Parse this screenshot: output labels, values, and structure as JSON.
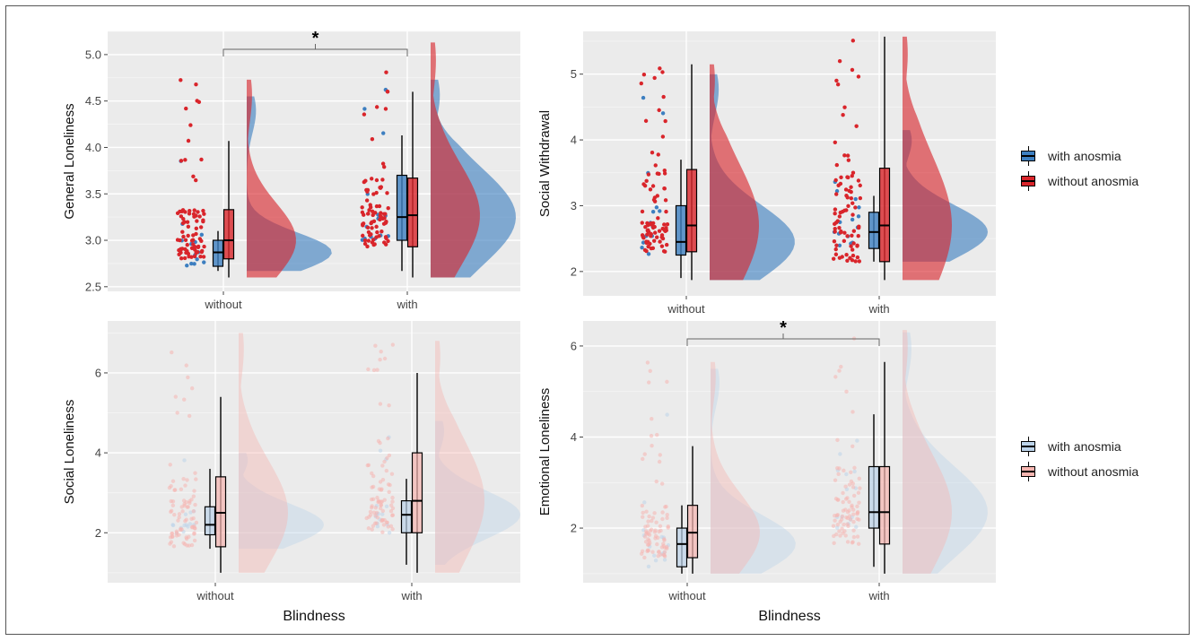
{
  "figure": {
    "significance_marker": "*",
    "x_axis_title": "Blindness"
  },
  "legends": [
    {
      "items": [
        {
          "label": "with anosmia",
          "color": "#3d7fc0"
        },
        {
          "label": "without anosmia",
          "color": "#d9252b"
        }
      ]
    },
    {
      "items": [
        {
          "label": "with anosmia",
          "color": "#bcd3ea"
        },
        {
          "label": "without anosmia",
          "color": "#f6b5b0"
        }
      ]
    }
  ],
  "chart_data": [
    {
      "type": "raincloud",
      "ylabel": "General Loneliness",
      "xlabel": "",
      "categories": [
        "without",
        "with"
      ],
      "ylim": [
        2.45,
        5.25
      ],
      "yticks": [
        "2.5",
        "3.0",
        "3.5",
        "4.0",
        "4.5",
        "5.0"
      ],
      "faded": false,
      "significance": {
        "between": [
          "without",
          "with"
        ],
        "label": "*"
      },
      "series": [
        {
          "name": "with anosmia",
          "color": "#3d7fc0",
          "box": {
            "without": {
              "min": 2.67,
              "q1": 2.72,
              "median": 2.87,
              "q3": 3.0,
              "max": 3.1
            },
            "with": {
              "min": 2.67,
              "q1": 3.0,
              "median": 3.25,
              "q3": 3.7,
              "max": 4.13
            }
          },
          "density_range": {
            "without": [
              2.67,
              4.55
            ],
            "with": [
              2.6,
              4.73
            ]
          }
        },
        {
          "name": "without anosmia",
          "color": "#d9252b",
          "box": {
            "without": {
              "min": 2.6,
              "q1": 2.8,
              "median": 3.0,
              "q3": 3.33,
              "max": 4.07
            },
            "with": {
              "min": 2.6,
              "q1": 2.93,
              "median": 3.27,
              "q3": 3.67,
              "max": 4.6
            }
          },
          "density_range": {
            "without": [
              2.6,
              4.73
            ],
            "with": [
              2.6,
              5.13
            ]
          }
        }
      ]
    },
    {
      "type": "raincloud",
      "ylabel": "Social Withdrawal",
      "xlabel": "",
      "categories": [
        "without",
        "with"
      ],
      "ylim": [
        1.63,
        5.65
      ],
      "yticks": [
        "2",
        "3",
        "4",
        "5"
      ],
      "faded": false,
      "significance": null,
      "series": [
        {
          "name": "with anosmia",
          "color": "#3d7fc0",
          "box": {
            "without": {
              "min": 1.9,
              "q1": 2.25,
              "median": 2.45,
              "q3": 3.0,
              "max": 3.7
            },
            "with": {
              "min": 2.15,
              "q1": 2.35,
              "median": 2.6,
              "q3": 2.9,
              "max": 3.15
            }
          },
          "density_range": {
            "without": [
              1.87,
              5.0
            ],
            "with": [
              2.15,
              4.15
            ]
          }
        },
        {
          "name": "without anosmia",
          "color": "#d9252b",
          "box": {
            "without": {
              "min": 1.87,
              "q1": 2.3,
              "median": 2.7,
              "q3": 3.55,
              "max": 5.15
            },
            "with": {
              "min": 1.87,
              "q1": 2.15,
              "median": 2.7,
              "q3": 3.57,
              "max": 5.57
            }
          },
          "density_range": {
            "without": [
              1.87,
              5.15
            ],
            "with": [
              1.87,
              5.57
            ]
          }
        }
      ]
    },
    {
      "type": "raincloud",
      "ylabel": "Social Loneliness",
      "xlabel": "Blindness",
      "categories": [
        "without",
        "with"
      ],
      "ylim": [
        0.75,
        7.3
      ],
      "yticks": [
        "2",
        "4",
        "6"
      ],
      "faded": true,
      "significance": null,
      "series": [
        {
          "name": "with anosmia",
          "color": "#bcd3ea",
          "box": {
            "without": {
              "min": 1.6,
              "q1": 1.95,
              "median": 2.2,
              "q3": 2.65,
              "max": 3.6
            },
            "with": {
              "min": 1.2,
              "q1": 2.0,
              "median": 2.45,
              "q3": 2.8,
              "max": 3.35
            }
          },
          "density_range": {
            "without": [
              1.6,
              4.0
            ],
            "with": [
              1.2,
              4.8
            ]
          }
        },
        {
          "name": "without anosmia",
          "color": "#f6b5b0",
          "box": {
            "without": {
              "min": 1.0,
              "q1": 1.65,
              "median": 2.5,
              "q3": 3.4,
              "max": 5.4
            },
            "with": {
              "min": 1.0,
              "q1": 2.0,
              "median": 2.8,
              "q3": 4.0,
              "max": 6.0
            }
          },
          "density_range": {
            "without": [
              1.0,
              7.0
            ],
            "with": [
              1.0,
              6.8
            ]
          }
        }
      ]
    },
    {
      "type": "raincloud",
      "ylabel": "Emotional Loneliness",
      "xlabel": "Blindness",
      "categories": [
        "without",
        "with"
      ],
      "ylim": [
        0.8,
        6.55
      ],
      "yticks": [
        "2",
        "4",
        "6"
      ],
      "faded": true,
      "significance": {
        "between": [
          "without",
          "with"
        ],
        "label": "*"
      },
      "series": [
        {
          "name": "with anosmia",
          "color": "#bcd3ea",
          "box": {
            "without": {
              "min": 1.0,
              "q1": 1.15,
              "median": 1.65,
              "q3": 2.0,
              "max": 2.5
            },
            "with": {
              "min": 1.15,
              "q1": 2.0,
              "median": 2.35,
              "q3": 3.35,
              "max": 4.5
            }
          },
          "density_range": {
            "without": [
              1.0,
              5.5
            ],
            "with": [
              1.0,
              6.3
            ]
          }
        },
        {
          "name": "without anosmia",
          "color": "#f6b5b0",
          "box": {
            "without": {
              "min": 1.0,
              "q1": 1.35,
              "median": 1.9,
              "q3": 2.5,
              "max": 3.8
            },
            "with": {
              "min": 1.0,
              "q1": 1.65,
              "median": 2.35,
              "q3": 3.35,
              "max": 5.65
            }
          },
          "density_range": {
            "without": [
              1.0,
              5.65
            ],
            "with": [
              1.0,
              6.35
            ]
          }
        }
      ]
    }
  ]
}
